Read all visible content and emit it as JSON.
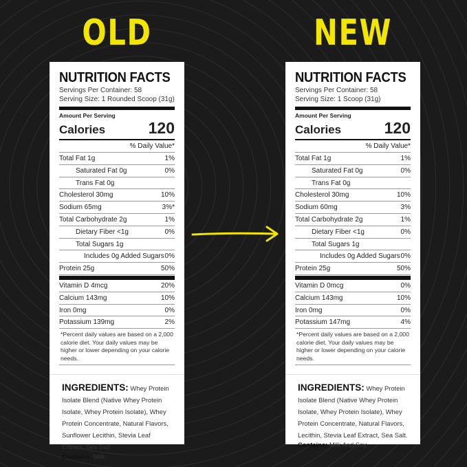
{
  "accent_color": "#f2e600",
  "arrow_icon": "arrow-right-icon",
  "panels": [
    {
      "heading": "OLD",
      "title": "NUTRITION FACTS",
      "servings": "Servings Per Container: 58",
      "serving_size": "Serving Size: 1 Rounded Scoop (31g)",
      "amount_label": "Amount Per Serving",
      "calories_label": "Calories",
      "calories": "120",
      "dv_header": "% Daily Value*",
      "rows": [
        [
          "Total Fat 1g",
          "1%",
          0
        ],
        [
          "Saturated Fat 0g",
          "0%",
          1
        ],
        [
          "Trans Fat 0g",
          "",
          1
        ],
        [
          "Cholesterol 30mg",
          "10%",
          0
        ],
        [
          "Sodium 65mg",
          "3%*",
          0
        ],
        [
          "Total Carbohydrate 2g",
          "1%",
          0
        ],
        [
          "Dietary Fiber <1g",
          "0%",
          1
        ],
        [
          "Total Sugars 1g",
          "",
          1
        ],
        [
          "Includes 0g Added Sugars",
          "0%",
          2
        ],
        [
          "Protein 25g",
          "50%",
          0
        ]
      ],
      "vitamins": [
        [
          "Vitamin D 4mcg",
          "20%"
        ],
        [
          "Calcium 143mg",
          "10%"
        ],
        [
          "Iron 0mg",
          "0%"
        ],
        [
          "Potassium 139mg",
          "2%"
        ]
      ],
      "footnote": "*Percent daily values are based on a 2,000 calorie diet. Your daily values may be higher or lower depending on your calorie needs.",
      "ingredients_label": "INGREDIENTS:",
      "ingredients": "Whey Protein Isolate Blend (Native Whey Protein Isolate, Whey Protein Isolate), Whey Protein Concentrate, Natural Flavors, Sunflower Lecithin, Stevia Leaf Extract, Sea Salt",
      "contains_label": "Contains:",
      "contains": "Milk"
    },
    {
      "heading": "NEW",
      "title": "NUTRITION FACTS",
      "servings": "Servings Per Container: 58",
      "serving_size": "Serving Size: 1 Scoop (31g)",
      "amount_label": "Amount Per Serving",
      "calories_label": "Calories",
      "calories": "120",
      "dv_header": "% Daily Value*",
      "rows": [
        [
          "Total Fat 1g",
          "1%",
          0
        ],
        [
          "Saturated Fat 0g",
          "0%",
          1
        ],
        [
          "Trans Fat 0g",
          "",
          1
        ],
        [
          "Cholesterol 30mg",
          "10%",
          0
        ],
        [
          "Sodium 60mg",
          "3%",
          0
        ],
        [
          "Total Carbohydrate 2g",
          "1%",
          0
        ],
        [
          "Dietary Fiber <1g",
          "0%",
          1
        ],
        [
          "Total Sugars 1g",
          "",
          1
        ],
        [
          "Includes 0g Added Sugars",
          "0%",
          2
        ],
        [
          "Protein 25g",
          "50%",
          0
        ]
      ],
      "vitamins": [
        [
          "Vitamin D 0mcg",
          "0%"
        ],
        [
          "Calcium 143mg",
          "10%"
        ],
        [
          "Iron 0mg",
          "0%"
        ],
        [
          "Potassium 147mg",
          "4%"
        ]
      ],
      "footnote": "*Percent daily values are based on a 2,000 calorie diet. Your daily values may be higher or lower depending on your calorie needs.",
      "ingredients_label": "INGREDIENTS:",
      "ingredients": "Whey Protein Isolate Blend (Native Whey Protein Isolate, Whey Protein Isolate), Whey Protein Concentrate, Natural Flavors, Lecithin, Stevia Leaf Extract, Sea Salt.",
      "contains_label": "Contains:",
      "contains": "Milk And Soy"
    }
  ]
}
